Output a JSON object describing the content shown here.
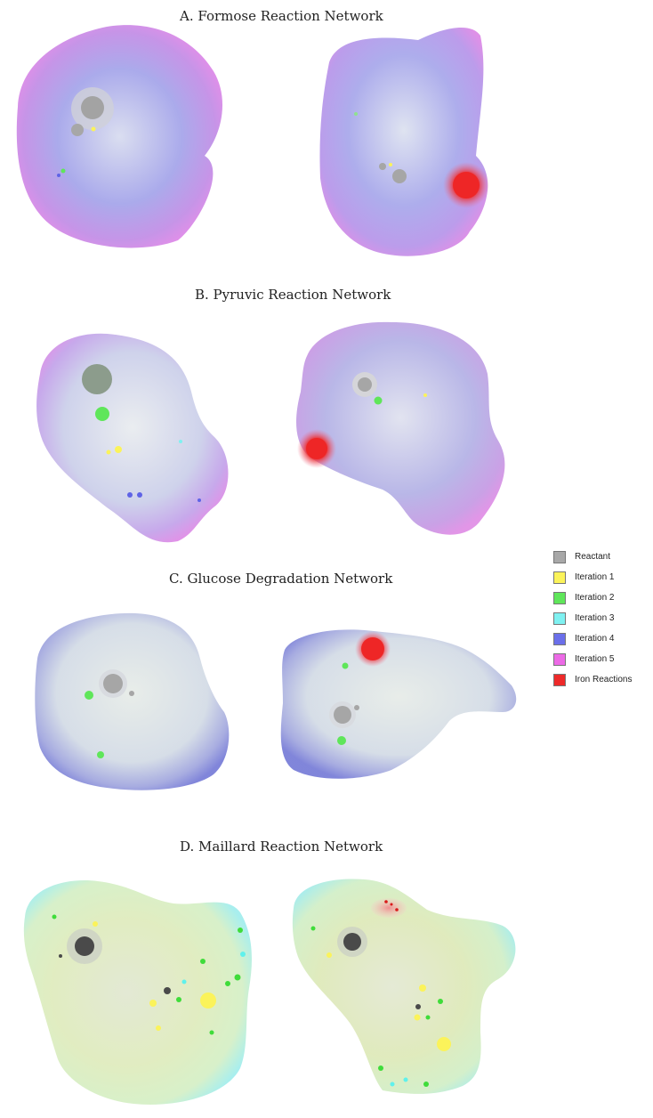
{
  "panels": [
    {
      "id": "A",
      "title": "A. Formose Reaction Network"
    },
    {
      "id": "B",
      "title": "B. Pyruvic Reaction Network"
    },
    {
      "id": "C",
      "title": "C. Glucose Degradation Network"
    },
    {
      "id": "D",
      "title": "D. Maillard Reaction Network"
    }
  ],
  "legend": [
    {
      "label": "Reactant",
      "color": "#a8a8a8"
    },
    {
      "label": "Iteration 1",
      "color": "#fbf35a"
    },
    {
      "label": "Iteration 2",
      "color": "#5fe65a"
    },
    {
      "label": "Iteration 3",
      "color": "#7ff1f1"
    },
    {
      "label": "Iteration 4",
      "color": "#6b6fea"
    },
    {
      "label": "Iteration 5",
      "color": "#ec6ae6"
    },
    {
      "label": "Iron Reactions",
      "color": "#ee2a2a"
    }
  ]
}
